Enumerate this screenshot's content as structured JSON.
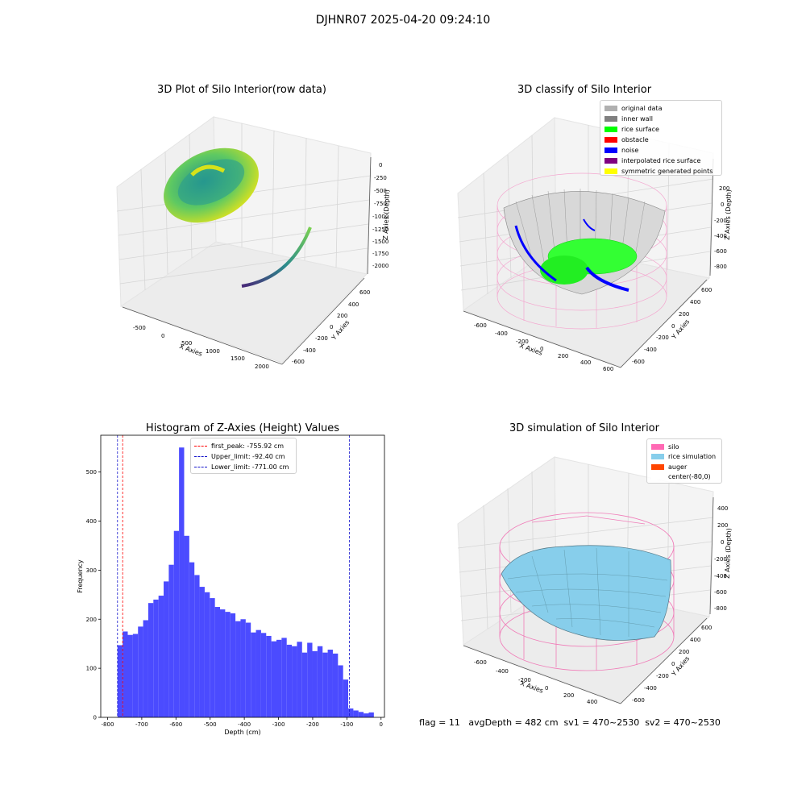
{
  "figure": {
    "suptitle": "DJHNR07 2025-04-20 09:24:10",
    "footer": "flag = 11   avgDepth = 482 cm  sv1 = 470~2530  sv2 = 470~2530"
  },
  "colors": {
    "hist_bar": "#4b4bff",
    "first_peak": "#ff0000",
    "limit": "#1515cc",
    "silo": "#ff69b4",
    "rice_sim": "#87ceeb",
    "rice_surface": "#00ff00",
    "noise": "#0000ff",
    "inner_wall": "#808080",
    "interp": "#800080"
  },
  "plot1": {
    "title": "3D Plot of Silo Interior(row data)",
    "xlabel": "X Axies",
    "ylabel": "Y Axies",
    "zlabel": "Z Axies (Depth)",
    "xticks": [
      "-500",
      "0",
      "500",
      "1000",
      "1500",
      "2000"
    ],
    "yticks": [
      "600",
      "400",
      "200",
      "0",
      "-200",
      "-400",
      "-600"
    ],
    "zticks": [
      "0",
      "-250",
      "-500",
      "-750",
      "-1000",
      "-1250",
      "-1500",
      "-1750",
      "-2000"
    ]
  },
  "plot2": {
    "title": "3D classify of Silo Interior",
    "xlabel": "X Axies",
    "ylabel": "Y Axies",
    "zlabel": "Z Axies (Depth)",
    "xticks": [
      "-600",
      "-400",
      "-200",
      "0",
      "200",
      "400",
      "600"
    ],
    "yticks": [
      "600",
      "400",
      "200",
      "0",
      "-200",
      "-400",
      "-600"
    ],
    "zticks": [
      "200",
      "0",
      "-200",
      "-400",
      "-600",
      "-800"
    ],
    "legend": [
      {
        "label": "original data",
        "color": "#b0b0b0"
      },
      {
        "label": "inner wall",
        "color": "#808080"
      },
      {
        "label": "rice surface",
        "color": "#00ff00"
      },
      {
        "label": "obstacle",
        "color": "#ff0000"
      },
      {
        "label": "noise",
        "color": "#0000ff"
      },
      {
        "label": "interpolated rice surface",
        "color": "#800080"
      },
      {
        "label": "symmetric generated points",
        "color": "#ffff00"
      }
    ]
  },
  "plot4": {
    "title": "3D simulation of Silo Interior",
    "xlabel": "X Axies",
    "ylabel": "Y Axies",
    "zlabel": "Z Axies (Depth)",
    "xticks": [
      "-600",
      "-400",
      "-200",
      "0",
      "200",
      "400"
    ],
    "yticks": [
      "600",
      "400",
      "200",
      "0",
      "-200",
      "-400",
      "-600"
    ],
    "zticks": [
      "400",
      "200",
      "0",
      "-200",
      "-400",
      "-600",
      "-800"
    ],
    "legend": [
      {
        "label": "silo",
        "color": "#ff69b4"
      },
      {
        "label": "rice simulation",
        "color": "#87ceeb"
      },
      {
        "label": "auger",
        "color": "#ff4500"
      },
      {
        "label": "center(-80,0)",
        "color": "#ffffff"
      }
    ]
  },
  "chart_data": {
    "type": "bar",
    "title": "Histogram of Z-Axies (Height) Values",
    "xlabel": "Depth (cm)",
    "ylabel": "Frequency",
    "xlim": [
      -820,
      10
    ],
    "ylim": [
      0,
      575
    ],
    "xticks": [
      -800,
      -700,
      -600,
      -500,
      -400,
      -300,
      -200,
      -100,
      0
    ],
    "yticks": [
      0,
      100,
      200,
      300,
      400,
      500
    ],
    "bin_edges_start": -771,
    "bin_width": 15,
    "values": [
      147,
      175,
      168,
      170,
      185,
      198,
      233,
      240,
      248,
      277,
      311,
      380,
      550,
      370,
      316,
      290,
      266,
      255,
      243,
      225,
      220,
      215,
      212,
      196,
      200,
      193,
      173,
      178,
      172,
      166,
      155,
      158,
      162,
      148,
      145,
      154,
      132,
      152,
      135,
      145,
      132,
      138,
      130,
      106,
      77,
      18,
      14,
      11,
      8,
      10
    ],
    "vlines": [
      {
        "label": "first_peak: -755.92 cm",
        "x": -755.92,
        "color": "#ff0000"
      },
      {
        "label": "Upper_limit: -92.40 cm",
        "x": -92.4,
        "color": "#1515cc"
      },
      {
        "label": "Lower_limit: -771.00 cm",
        "x": -771.0,
        "color": "#1515cc"
      }
    ]
  }
}
